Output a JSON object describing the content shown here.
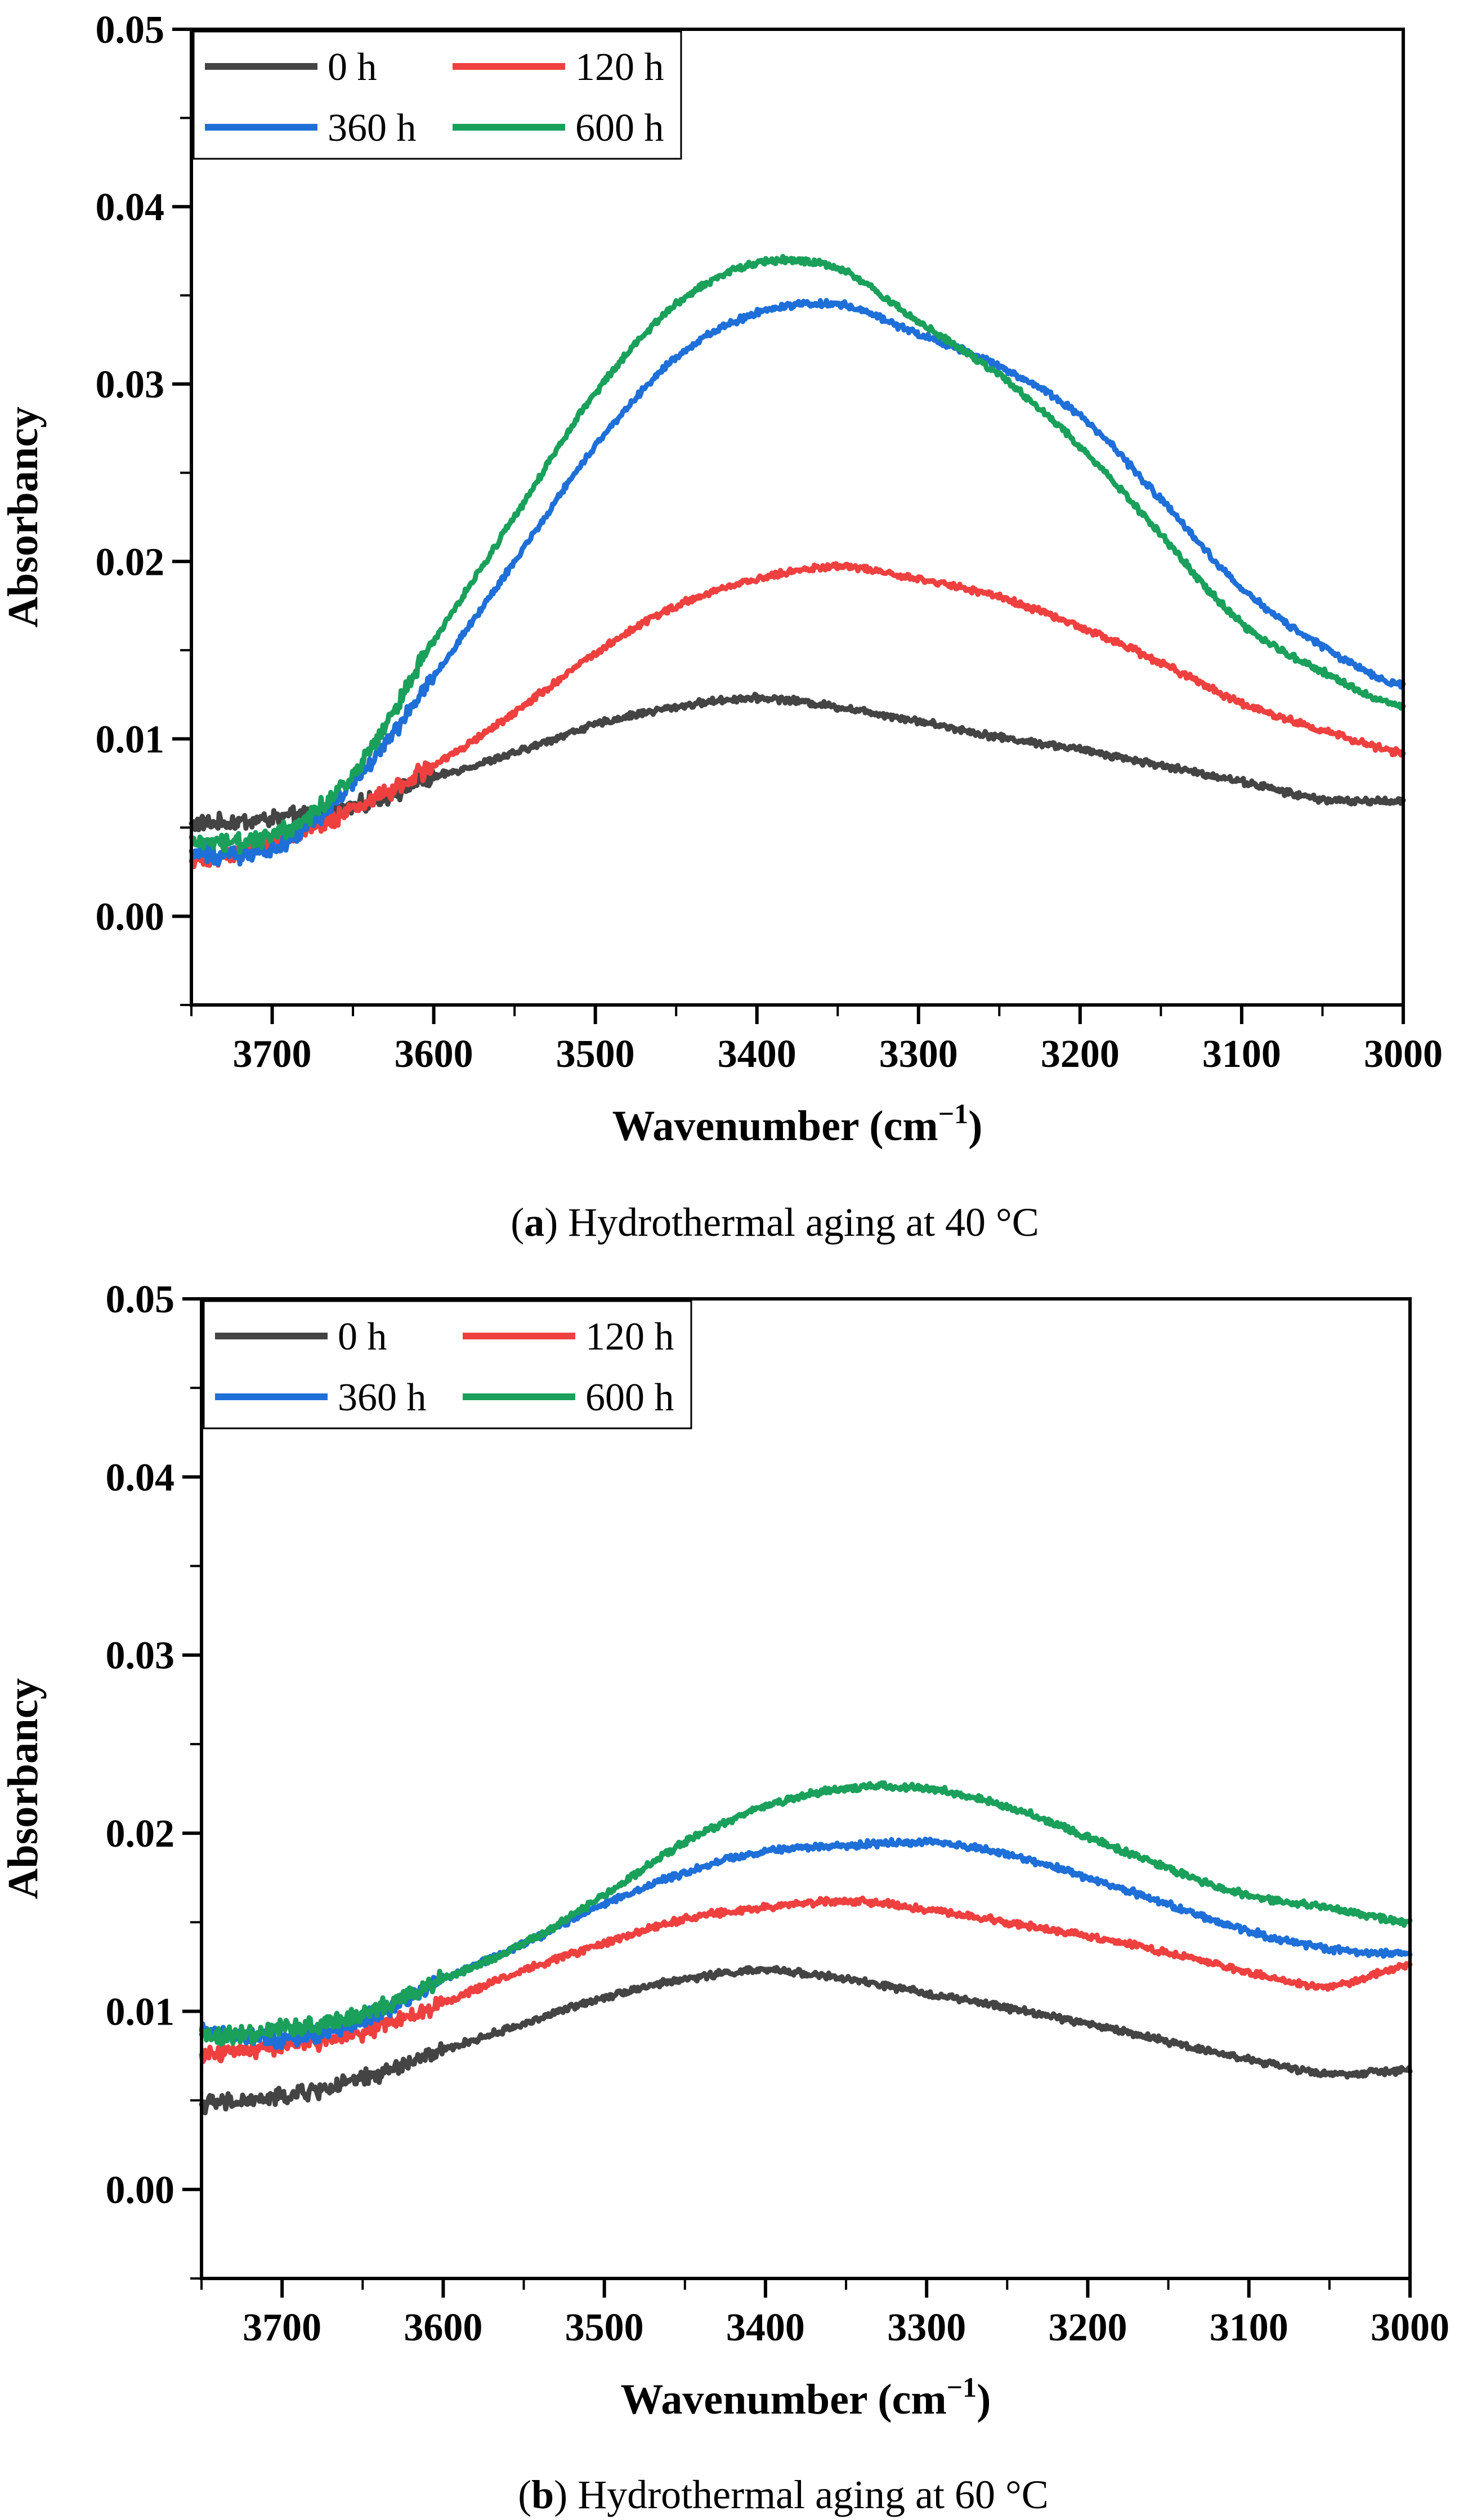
{
  "chart_data": [
    {
      "type": "line",
      "panel_label": "a",
      "caption": "Hydrothermal aging at 40 °C",
      "xlabel": "Wavenumber (cm",
      "xlabel_sup": "−1",
      "xlabel_close": ")",
      "ylabel": "Absorbancy",
      "xlim": [
        3750,
        3000
      ],
      "ylim": [
        -0.005,
        0.05
      ],
      "xticks": [
        3700,
        3600,
        3500,
        3400,
        3300,
        3200,
        3100,
        3000
      ],
      "yticks": [
        0.0,
        0.01,
        0.02,
        0.03,
        0.04,
        0.05
      ],
      "ytick_labels": [
        "0.00",
        "0.01",
        "0.02",
        "0.03",
        "0.04",
        "0.05"
      ],
      "legend": {
        "position": "top-left",
        "columns": 2
      },
      "series": [
        {
          "name": "0 h",
          "color": "#444444",
          "x": [
            3750,
            3700,
            3650,
            3600,
            3550,
            3500,
            3450,
            3400,
            3350,
            3300,
            3250,
            3200,
            3150,
            3100,
            3050,
            3000
          ],
          "y": [
            0.0052,
            0.0055,
            0.0062,
            0.0078,
            0.0092,
            0.0108,
            0.0118,
            0.0123,
            0.0118,
            0.011,
            0.0101,
            0.0094,
            0.0085,
            0.0076,
            0.0066,
            0.0065
          ]
        },
        {
          "name": "120 h",
          "color": "#ef4040",
          "x": [
            3750,
            3700,
            3650,
            3600,
            3550,
            3500,
            3450,
            3400,
            3350,
            3300,
            3250,
            3200,
            3150,
            3100,
            3050,
            3000
          ],
          "y": [
            0.003,
            0.0042,
            0.006,
            0.0085,
            0.0115,
            0.0148,
            0.0175,
            0.019,
            0.0197,
            0.019,
            0.018,
            0.0163,
            0.0143,
            0.012,
            0.0105,
            0.0092
          ]
        },
        {
          "name": "360 h",
          "color": "#1f6fd8",
          "x": [
            3750,
            3700,
            3650,
            3600,
            3550,
            3500,
            3450,
            3400,
            3350,
            3300,
            3250,
            3200,
            3150,
            3100,
            3050,
            3000
          ],
          "y": [
            0.0035,
            0.0038,
            0.0075,
            0.0135,
            0.02,
            0.0265,
            0.0315,
            0.034,
            0.0345,
            0.0328,
            0.031,
            0.0282,
            0.0235,
            0.0185,
            0.0152,
            0.013
          ]
        },
        {
          "name": "600 h",
          "color": "#1aa05a",
          "x": [
            3750,
            3700,
            3650,
            3600,
            3550,
            3500,
            3450,
            3400,
            3350,
            3300,
            3250,
            3200,
            3150,
            3100,
            3050,
            3000
          ],
          "y": [
            0.0042,
            0.0045,
            0.008,
            0.0155,
            0.0225,
            0.0295,
            0.0345,
            0.0368,
            0.0365,
            0.0335,
            0.0305,
            0.0265,
            0.0215,
            0.0165,
            0.0138,
            0.0118
          ]
        }
      ]
    },
    {
      "type": "line",
      "panel_label": "b",
      "caption": "Hydrothermal aging at 60 °C",
      "xlabel": "Wavenumber (cm",
      "xlabel_sup": "−1",
      "xlabel_close": ")",
      "ylabel": "Absorbancy",
      "xlim": [
        3750,
        3000
      ],
      "ylim": [
        -0.005,
        0.05
      ],
      "xticks": [
        3700,
        3600,
        3500,
        3400,
        3300,
        3200,
        3100,
        3000
      ],
      "yticks": [
        0.0,
        0.01,
        0.02,
        0.03,
        0.04,
        0.05
      ],
      "ytick_labels": [
        "0.00",
        "0.01",
        "0.02",
        "0.03",
        "0.04",
        "0.05"
      ],
      "legend": {
        "position": "top-left",
        "columns": 2
      },
      "series": [
        {
          "name": "0 h",
          "color": "#444444",
          "x": [
            3750,
            3700,
            3650,
            3600,
            3550,
            3500,
            3450,
            3400,
            3350,
            3300,
            3250,
            3200,
            3150,
            3100,
            3050,
            3000
          ],
          "y": [
            0.0048,
            0.0052,
            0.0062,
            0.0078,
            0.0093,
            0.0108,
            0.0118,
            0.0123,
            0.0118,
            0.011,
            0.0102,
            0.0093,
            0.0083,
            0.0073,
            0.0065,
            0.0067
          ]
        },
        {
          "name": "120 h",
          "color": "#ef4040",
          "x": [
            3750,
            3700,
            3650,
            3600,
            3550,
            3500,
            3450,
            3400,
            3350,
            3300,
            3250,
            3200,
            3150,
            3100,
            3050,
            3000
          ],
          "y": [
            0.0075,
            0.008,
            0.0088,
            0.0105,
            0.0123,
            0.0138,
            0.0152,
            0.0158,
            0.0162,
            0.0157,
            0.015,
            0.0142,
            0.0133,
            0.0122,
            0.0114,
            0.0126
          ]
        },
        {
          "name": "360 h",
          "color": "#1f6fd8",
          "x": [
            3750,
            3700,
            3650,
            3600,
            3550,
            3500,
            3450,
            3400,
            3350,
            3300,
            3250,
            3200,
            3150,
            3100,
            3050,
            3000
          ],
          "y": [
            0.0088,
            0.0085,
            0.0095,
            0.0118,
            0.0138,
            0.016,
            0.0178,
            0.019,
            0.0193,
            0.0195,
            0.0188,
            0.0175,
            0.016,
            0.0145,
            0.0135,
            0.0132
          ]
        },
        {
          "name": "600 h",
          "color": "#1aa05a",
          "x": [
            3750,
            3700,
            3650,
            3600,
            3550,
            3500,
            3450,
            3400,
            3350,
            3300,
            3250,
            3200,
            3150,
            3100,
            3050,
            3000
          ],
          "y": [
            0.0085,
            0.009,
            0.0098,
            0.0118,
            0.0138,
            0.0165,
            0.0195,
            0.0215,
            0.0225,
            0.0225,
            0.0215,
            0.0198,
            0.018,
            0.0165,
            0.0158,
            0.015
          ]
        }
      ]
    }
  ]
}
